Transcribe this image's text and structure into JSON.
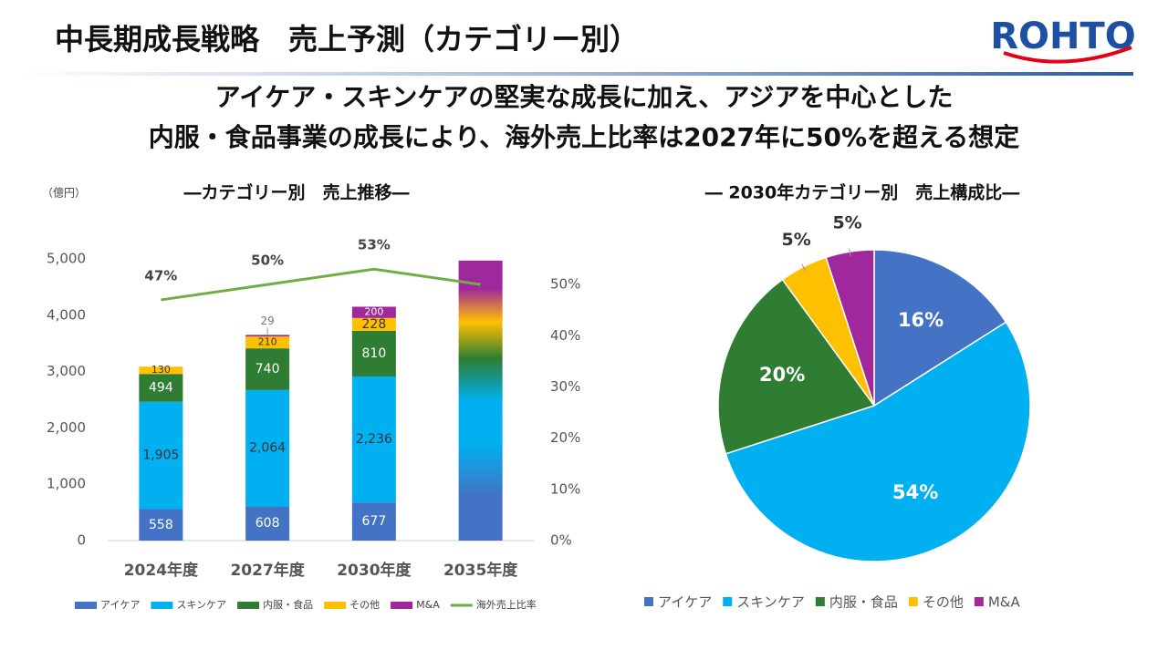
{
  "header": {
    "title": "中長期成長戦略　売上予測（カテゴリー別）",
    "logo": "ROHTO",
    "subtitle": [
      "アイケア・スキンケアの堅実な成長に加え、アジアを中心とした",
      "内服・食品事業の成長により、海外売上比率は2027年に50%を超える想定"
    ]
  },
  "chart_data": [
    {
      "type": "bar",
      "title": "―カテゴリー別　売上推移―",
      "y_label": "（億円）",
      "stacked": true,
      "categories": [
        "2024年度",
        "2027年度",
        "2030年度",
        "2035年度"
      ],
      "ylim": [
        0,
        5000
      ],
      "yticks": [
        0,
        {
          "value": 1000,
          "label": "1,000"
        },
        {
          "value": 2000,
          "label": "2,000"
        },
        {
          "value": 3000,
          "label": "3,000"
        },
        {
          "value": 4000,
          "label": "4,000"
        },
        {
          "value": 5000,
          "label": "5,000"
        }
      ],
      "y2lim": [
        0,
        55
      ],
      "y2ticks": [
        {
          "value": 0,
          "label": "0%"
        },
        {
          "value": 10,
          "label": "10%"
        },
        {
          "value": 20,
          "label": "20%"
        },
        {
          "value": 30,
          "label": "30%"
        },
        {
          "value": 40,
          "label": "40%"
        },
        {
          "value": 50,
          "label": "50%"
        }
      ],
      "series": [
        {
          "name": "アイケア",
          "color": "#4472c4",
          "values": [
            558,
            608,
            677,
            null
          ]
        },
        {
          "name": "スキンケア",
          "color": "#00b0f0",
          "values": [
            1905,
            2064,
            2236,
            null
          ],
          "value_labels": [
            "1,905",
            "2,064",
            "2,236",
            null
          ]
        },
        {
          "name": "内服・食品",
          "color": "#2e7d32",
          "values": [
            494,
            740,
            810,
            null
          ]
        },
        {
          "name": "その他",
          "color": "#ffc000",
          "values": [
            130,
            210,
            228,
            null
          ]
        },
        {
          "name": "M&A",
          "color": "#a0279c",
          "values": [
            null,
            29,
            200,
            null
          ]
        },
        {
          "name": "海外売上比率",
          "color": "#70ad47",
          "line": true,
          "axis": "y2",
          "values": [
            47,
            50,
            53,
            50
          ],
          "value_labels": [
            "47%",
            "50%",
            "53%",
            null
          ]
        }
      ],
      "gradient_values": [
        null,
        null,
        null,
        4970
      ]
    },
    {
      "type": "pie",
      "title": "― 2030年カテゴリー別　売上構成比―",
      "categories": [
        "アイケア",
        "スキンケア",
        "内服・食品",
        "その他",
        "M&A"
      ],
      "values": [
        16,
        54,
        20,
        5,
        5
      ],
      "value_labels": [
        "16%",
        "54%",
        "20%",
        "5%",
        "5%"
      ],
      "colors": [
        "#4472c4",
        "#00b0f0",
        "#2e7d32",
        "#ffc000",
        "#a0279c"
      ]
    }
  ]
}
